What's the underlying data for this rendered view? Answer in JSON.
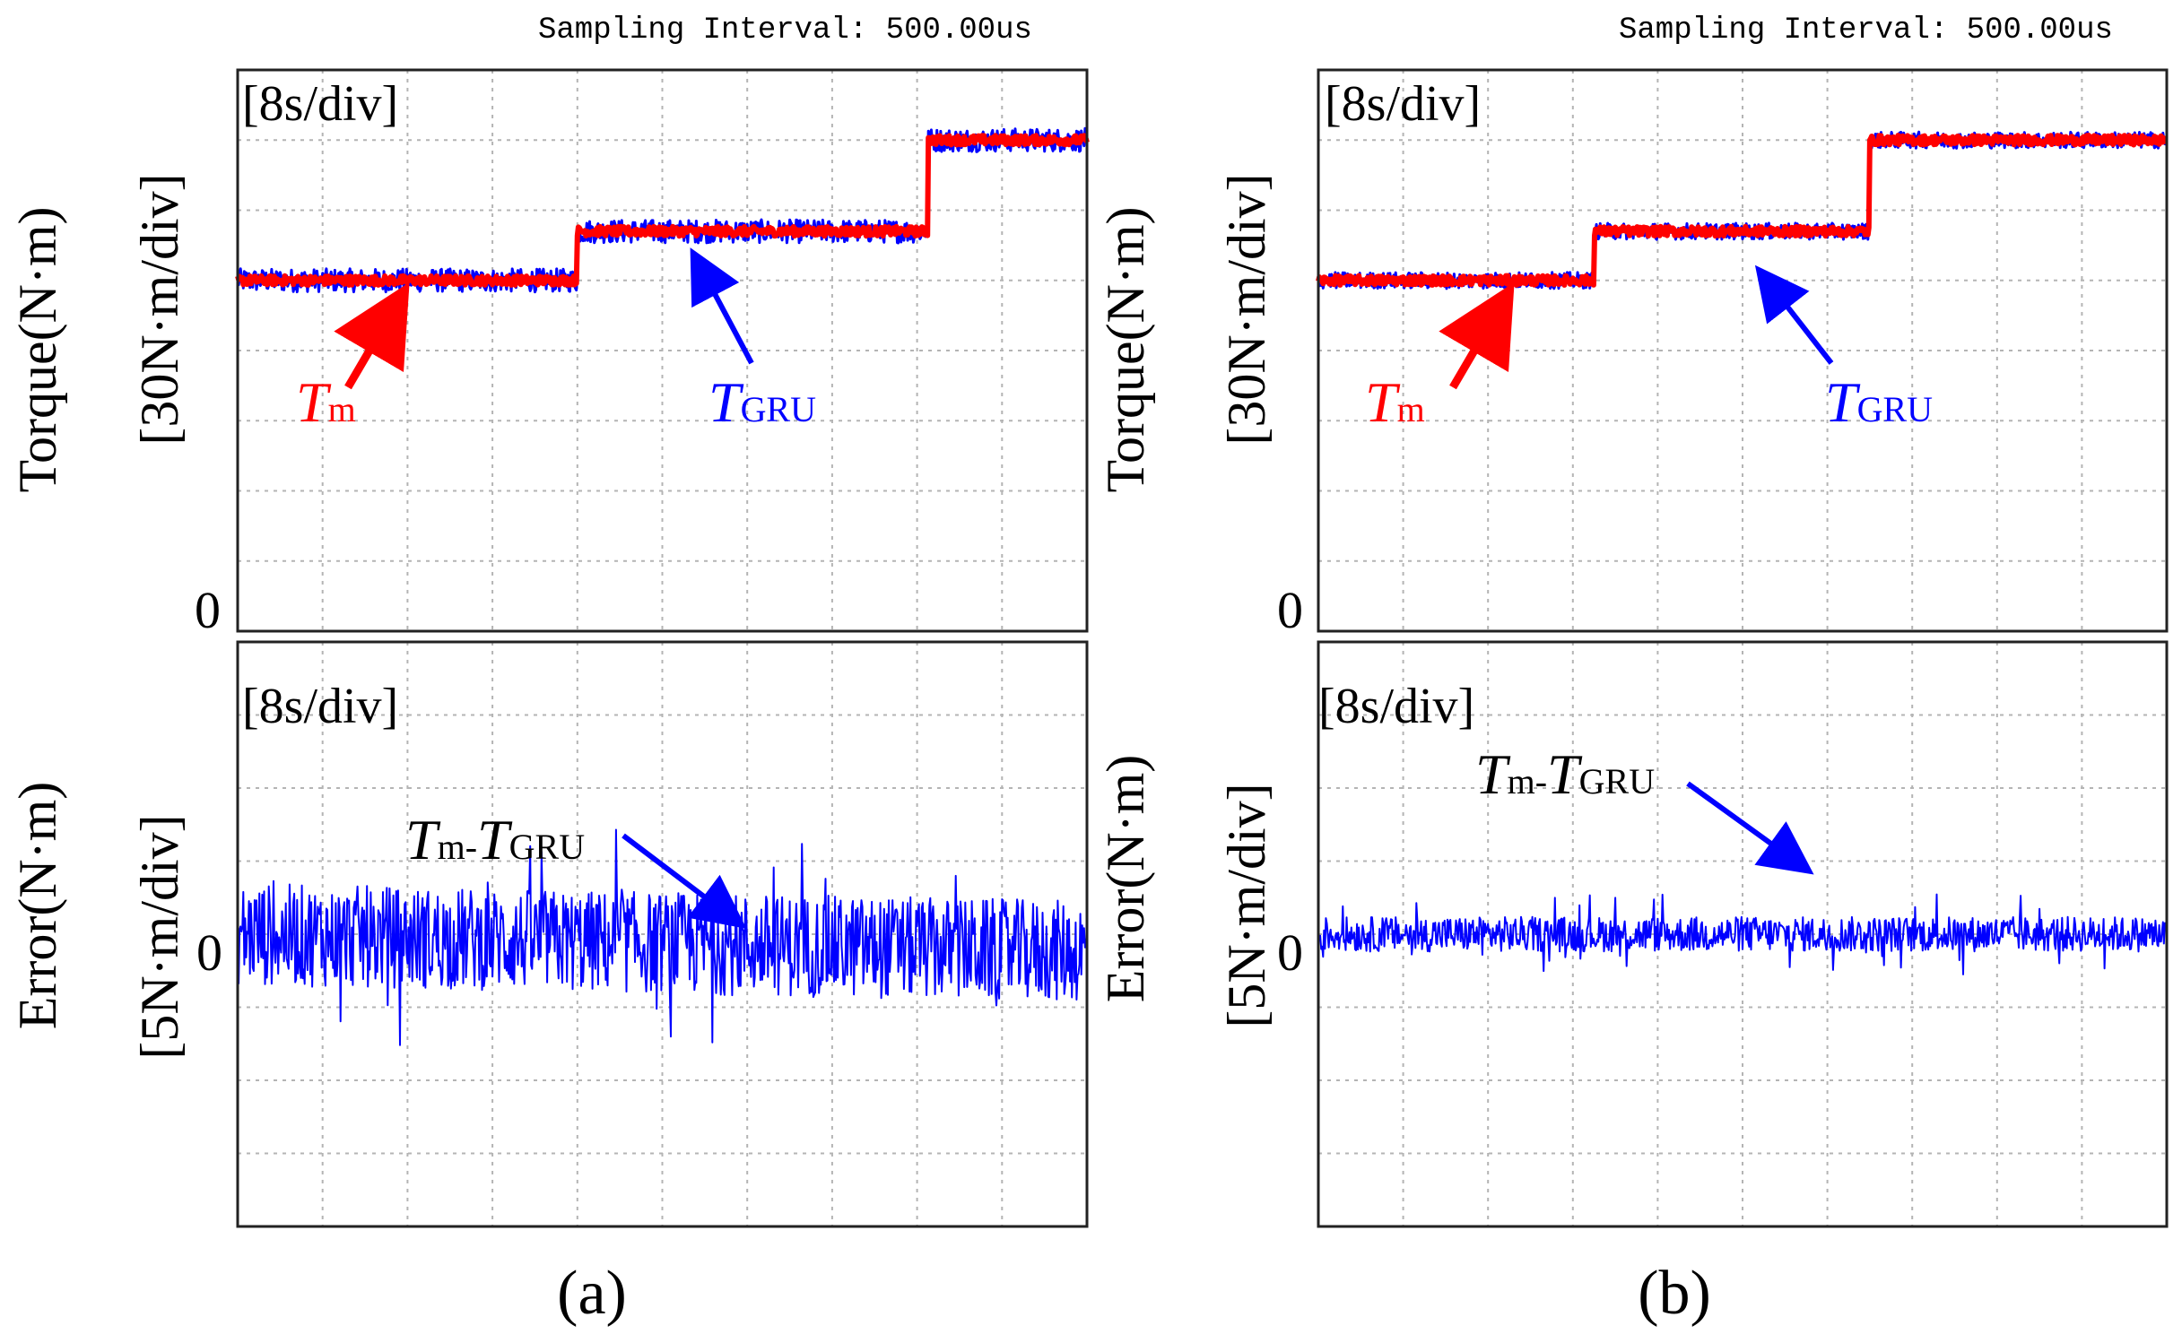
{
  "figure": {
    "colors": {
      "measured": "#ff0000",
      "estimated": "#0000ff",
      "grid": "#b4b4b4",
      "frame": "#222222",
      "text": "#000000"
    }
  },
  "chart_data": [
    {
      "panel": "(a)",
      "type": "line",
      "header": "Sampling Interval:  500.00us",
      "time_scale": "[8s/div]",
      "ylabel": "Torque(N·m)",
      "yscale": "[30N·m/div]",
      "y_zero_label": "0",
      "x_divisions": 10,
      "y_divisions": 8,
      "xlim": [
        0,
        80
      ],
      "ylim": [
        0,
        240
      ],
      "series": [
        {
          "name": "Tm",
          "color": "#ff0000",
          "steps": [
            {
              "t_start": 0,
              "t_end": 32,
              "value": 150
            },
            {
              "t_start": 32,
              "t_end": 65,
              "value": 171
            },
            {
              "t_start": 65,
              "t_end": 80,
              "value": 210
            }
          ],
          "noise_amplitude": 2
        },
        {
          "name": "TGRU",
          "color": "#0000ff",
          "steps": [
            {
              "t_start": 0,
              "t_end": 32,
              "value": 150
            },
            {
              "t_start": 32,
              "t_end": 65,
              "value": 171
            },
            {
              "t_start": 65,
              "t_end": 80,
              "value": 210
            }
          ],
          "noise_amplitude": 5
        }
      ],
      "annotations": [
        {
          "base": "T",
          "sub": "m",
          "color": "#ff0000"
        },
        {
          "base": "T",
          "sub": "GRU",
          "color": "#0000ff"
        }
      ]
    },
    {
      "panel": "(a)",
      "type": "line",
      "time_scale": "[8s/div]",
      "ylabel": "Error(N·m)",
      "yscale": "[5N·m/div]",
      "y_zero_label": "0",
      "x_divisions": 10,
      "y_divisions": 8,
      "xlim": [
        0,
        80
      ],
      "ylim": [
        -20,
        20
      ],
      "series": [
        {
          "name": "Tm-TGRU",
          "color": "#0000ff",
          "mean_start": 0,
          "mean_end": -1.2,
          "noise_amplitude": 3.5
        }
      ],
      "annotations": [
        {
          "base": "T",
          "sub": "m",
          "sep": "-",
          "base2": "T",
          "sub2": "GRU",
          "color": "#000000"
        }
      ]
    },
    {
      "panel": "(b)",
      "type": "line",
      "header": "Sampling Interval:  500.00us",
      "time_scale": "[8s/div]",
      "ylabel": "Torque(N·m)",
      "yscale": "[30N·m/div]",
      "y_zero_label": "0",
      "x_divisions": 10,
      "y_divisions": 8,
      "xlim": [
        0,
        80
      ],
      "ylim": [
        0,
        240
      ],
      "series": [
        {
          "name": "Tm",
          "color": "#ff0000",
          "steps": [
            {
              "t_start": 0,
              "t_end": 26,
              "value": 150
            },
            {
              "t_start": 26,
              "t_end": 52,
              "value": 171
            },
            {
              "t_start": 52,
              "t_end": 80,
              "value": 210
            }
          ],
          "noise_amplitude": 2
        },
        {
          "name": "TGRU",
          "color": "#0000ff",
          "steps": [
            {
              "t_start": 0,
              "t_end": 26,
              "value": 150
            },
            {
              "t_start": 26,
              "t_end": 52,
              "value": 171
            },
            {
              "t_start": 52,
              "t_end": 80,
              "value": 210
            }
          ],
          "noise_amplitude": 3.5
        }
      ],
      "annotations": [
        {
          "base": "T",
          "sub": "m",
          "color": "#ff0000"
        },
        {
          "base": "T",
          "sub": "GRU",
          "color": "#0000ff"
        }
      ]
    },
    {
      "panel": "(b)",
      "type": "line",
      "time_scale": "[8s/div]",
      "ylabel": "Error(N·m)",
      "yscale": "[5N·m/div]",
      "y_zero_label": "0",
      "x_divisions": 10,
      "y_divisions": 8,
      "xlim": [
        0,
        80
      ],
      "ylim": [
        -20,
        20
      ],
      "series": [
        {
          "name": "Tm-TGRU",
          "color": "#0000ff",
          "mean_start": 0,
          "mean_end": 0,
          "noise_amplitude": 1.2
        }
      ],
      "annotations": [
        {
          "base": "T",
          "sub": "m",
          "sep": "-",
          "base2": "T",
          "sub2": "GRU",
          "color": "#000000"
        }
      ]
    }
  ],
  "captions": {
    "a": "(a)",
    "b": "(b)"
  }
}
